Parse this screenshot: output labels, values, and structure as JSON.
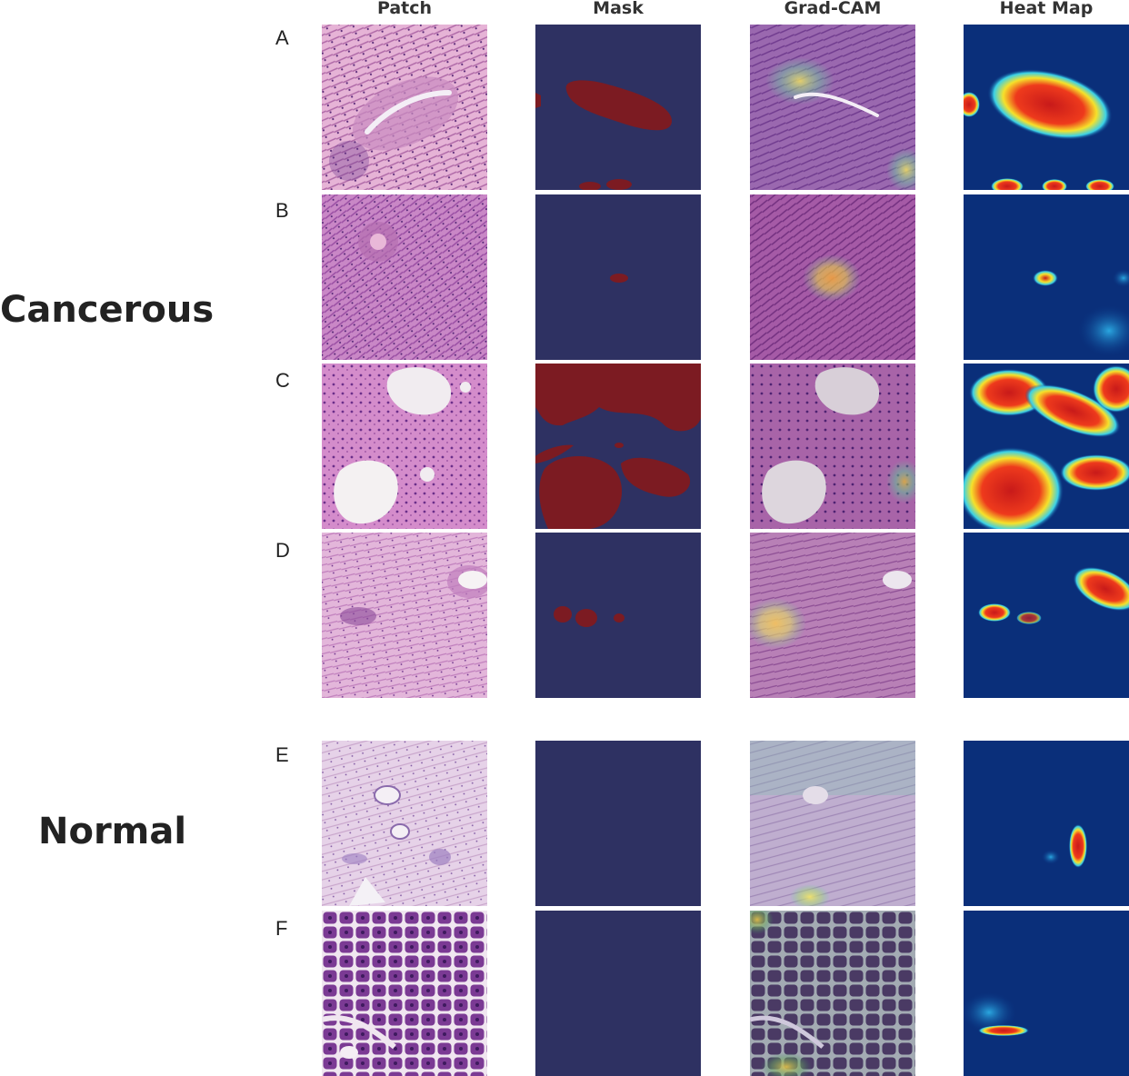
{
  "columns": [
    "Patch",
    "Mask",
    "Grad-CAM",
    "Heat Map"
  ],
  "groups": {
    "cancerous": {
      "label": "Cancerous"
    },
    "normal": {
      "label": "Normal"
    }
  },
  "rows": [
    {
      "letter": "A"
    },
    {
      "letter": "B"
    },
    {
      "letter": "C"
    },
    {
      "letter": "D"
    },
    {
      "letter": "E"
    },
    {
      "letter": "F"
    }
  ],
  "colors": {
    "mask_background": "#2e3162",
    "mask_region": "#7c1b22",
    "heat_low": "#0a3b8c",
    "heat_high": "#c81a1a",
    "tissue_pink": "#d79bc9",
    "tissue_purple": "#8a3f9e"
  }
}
